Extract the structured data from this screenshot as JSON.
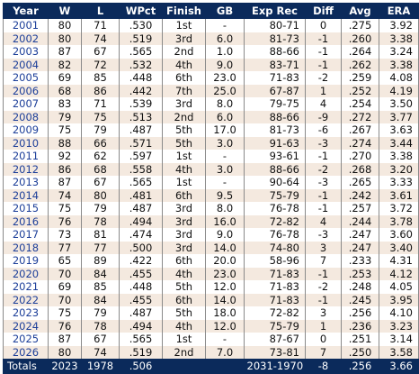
{
  "columns": [
    "Year",
    "W",
    "L",
    "WPct",
    "Finish",
    "GB",
    "Exp Rec",
    "Diff",
    "Avg",
    "ERA"
  ],
  "rows": [
    [
      "2001",
      "80",
      "71",
      ".530",
      "1st",
      "-",
      "80-71",
      "0",
      ".275",
      "3.92"
    ],
    [
      "2002",
      "80",
      "74",
      ".519",
      "3rd",
      "6.0",
      "81-73",
      "-1",
      ".260",
      "3.38"
    ],
    [
      "2003",
      "87",
      "67",
      ".565",
      "2nd",
      "1.0",
      "88-66",
      "-1",
      ".264",
      "3.24"
    ],
    [
      "2004",
      "82",
      "72",
      ".532",
      "4th",
      "9.0",
      "83-71",
      "-1",
      ".262",
      "3.38"
    ],
    [
      "2005",
      "69",
      "85",
      ".448",
      "6th",
      "23.0",
      "71-83",
      "-2",
      ".259",
      "4.08"
    ],
    [
      "2006",
      "68",
      "86",
      ".442",
      "7th",
      "25.0",
      "67-87",
      "1",
      ".252",
      "4.19"
    ],
    [
      "2007",
      "83",
      "71",
      ".539",
      "3rd",
      "8.0",
      "79-75",
      "4",
      ".254",
      "3.50"
    ],
    [
      "2008",
      "79",
      "75",
      ".513",
      "2nd",
      "6.0",
      "88-66",
      "-9",
      ".272",
      "3.77"
    ],
    [
      "2009",
      "75",
      "79",
      ".487",
      "5th",
      "17.0",
      "81-73",
      "-6",
      ".267",
      "3.63"
    ],
    [
      "2010",
      "88",
      "66",
      ".571",
      "5th",
      "3.0",
      "91-63",
      "-3",
      ".274",
      "3.44"
    ],
    [
      "2011",
      "92",
      "62",
      ".597",
      "1st",
      "-",
      "93-61",
      "-1",
      ".270",
      "3.38"
    ],
    [
      "2012",
      "86",
      "68",
      ".558",
      "4th",
      "3.0",
      "88-66",
      "-2",
      ".268",
      "3.20"
    ],
    [
      "2013",
      "87",
      "67",
      ".565",
      "1st",
      "-",
      "90-64",
      "-3",
      ".265",
      "3.33"
    ],
    [
      "2014",
      "74",
      "80",
      ".481",
      "6th",
      "9.5",
      "75-79",
      "-1",
      ".242",
      "3.61"
    ],
    [
      "2015",
      "75",
      "79",
      ".487",
      "3rd",
      "8.0",
      "76-78",
      "-1",
      ".257",
      "3.72"
    ],
    [
      "2016",
      "76",
      "78",
      ".494",
      "3rd",
      "16.0",
      "72-82",
      "4",
      ".244",
      "3.78"
    ],
    [
      "2017",
      "73",
      "81",
      ".474",
      "3rd",
      "9.0",
      "76-78",
      "-3",
      ".247",
      "3.60"
    ],
    [
      "2018",
      "77",
      "77",
      ".500",
      "3rd",
      "14.0",
      "74-80",
      "3",
      ".247",
      "3.40"
    ],
    [
      "2019",
      "65",
      "89",
      ".422",
      "6th",
      "20.0",
      "58-96",
      "7",
      ".233",
      "4.31"
    ],
    [
      "2020",
      "70",
      "84",
      ".455",
      "4th",
      "23.0",
      "71-83",
      "-1",
      ".253",
      "4.12"
    ],
    [
      "2021",
      "69",
      "85",
      ".448",
      "5th",
      "12.0",
      "71-83",
      "-2",
      ".248",
      "4.05"
    ],
    [
      "2022",
      "70",
      "84",
      ".455",
      "6th",
      "14.0",
      "71-83",
      "-1",
      ".245",
      "3.95"
    ],
    [
      "2023",
      "75",
      "79",
      ".487",
      "5th",
      "18.0",
      "72-82",
      "3",
      ".256",
      "4.10"
    ],
    [
      "2024",
      "76",
      "78",
      ".494",
      "4th",
      "12.0",
      "75-79",
      "1",
      ".236",
      "3.23"
    ],
    [
      "2025",
      "87",
      "67",
      ".565",
      "1st",
      "-",
      "87-67",
      "0",
      ".251",
      "3.14"
    ],
    [
      "2026",
      "80",
      "74",
      ".519",
      "2nd",
      "7.0",
      "73-81",
      "7",
      ".250",
      "3.58"
    ]
  ],
  "totals": {
    "label": "Totals",
    "w": "2023",
    "l": "1978",
    "wpct": ".506",
    "exp_rec": "2031-1970",
    "diff": "-8",
    "avg": ".256",
    "era": "3.66"
  }
}
